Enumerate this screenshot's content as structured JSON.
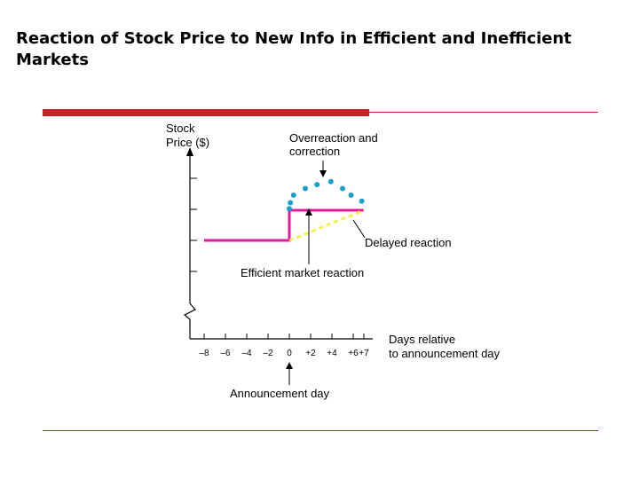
{
  "slide": {
    "title": "Reaction of Stock Price to New Info in Efficient and Inefficient Markets"
  },
  "colors": {
    "accent_rule": "#cc1f24",
    "efficient": "#e0189a",
    "overreaction": "#1a9fc8",
    "delayed": "#f5f04a"
  },
  "chart_data": {
    "type": "line",
    "title": "",
    "ylabel": "Stock\nPrice ($)",
    "xlabel": "Days relative\nto announcement day",
    "x_tick_labels": [
      "–8",
      "–6",
      "–4",
      "–2",
      "0",
      "+2",
      "+4",
      "+6",
      "+7"
    ],
    "x_ticks": [
      -8,
      -6,
      -4,
      -2,
      0,
      2,
      4,
      6,
      7
    ],
    "y_axis_break": true,
    "y_tick_count": 4,
    "grid": false,
    "series": [
      {
        "name": "Efficient market reaction",
        "style": "solid step",
        "color": "#e0189a",
        "x": [
          -8,
          0,
          0,
          7
        ],
        "y": [
          0,
          0,
          1,
          1
        ]
      },
      {
        "name": "Overreaction and correction",
        "style": "dotted",
        "color": "#1a9fc8",
        "x": [
          0,
          0.1,
          0.4,
          1.5,
          2.6,
          3.9,
          5.0,
          5.8,
          6.8
        ],
        "y": [
          1.05,
          1.25,
          1.5,
          1.72,
          1.85,
          1.95,
          1.72,
          1.5,
          1.3
        ]
      },
      {
        "name": "Delayed reaction",
        "style": "dashed",
        "color": "#f5f04a",
        "x": [
          0,
          2,
          4,
          6,
          7
        ],
        "y": [
          0,
          0.28,
          0.58,
          0.85,
          1
        ]
      }
    ],
    "annotations": [
      {
        "id": "overreaction",
        "text": "Overreaction and\ncorrection"
      },
      {
        "id": "delayed",
        "text": "Delayed reaction"
      },
      {
        "id": "efficient",
        "text": "Efficient market reaction"
      },
      {
        "id": "announcement",
        "text": "Announcement day"
      }
    ]
  }
}
